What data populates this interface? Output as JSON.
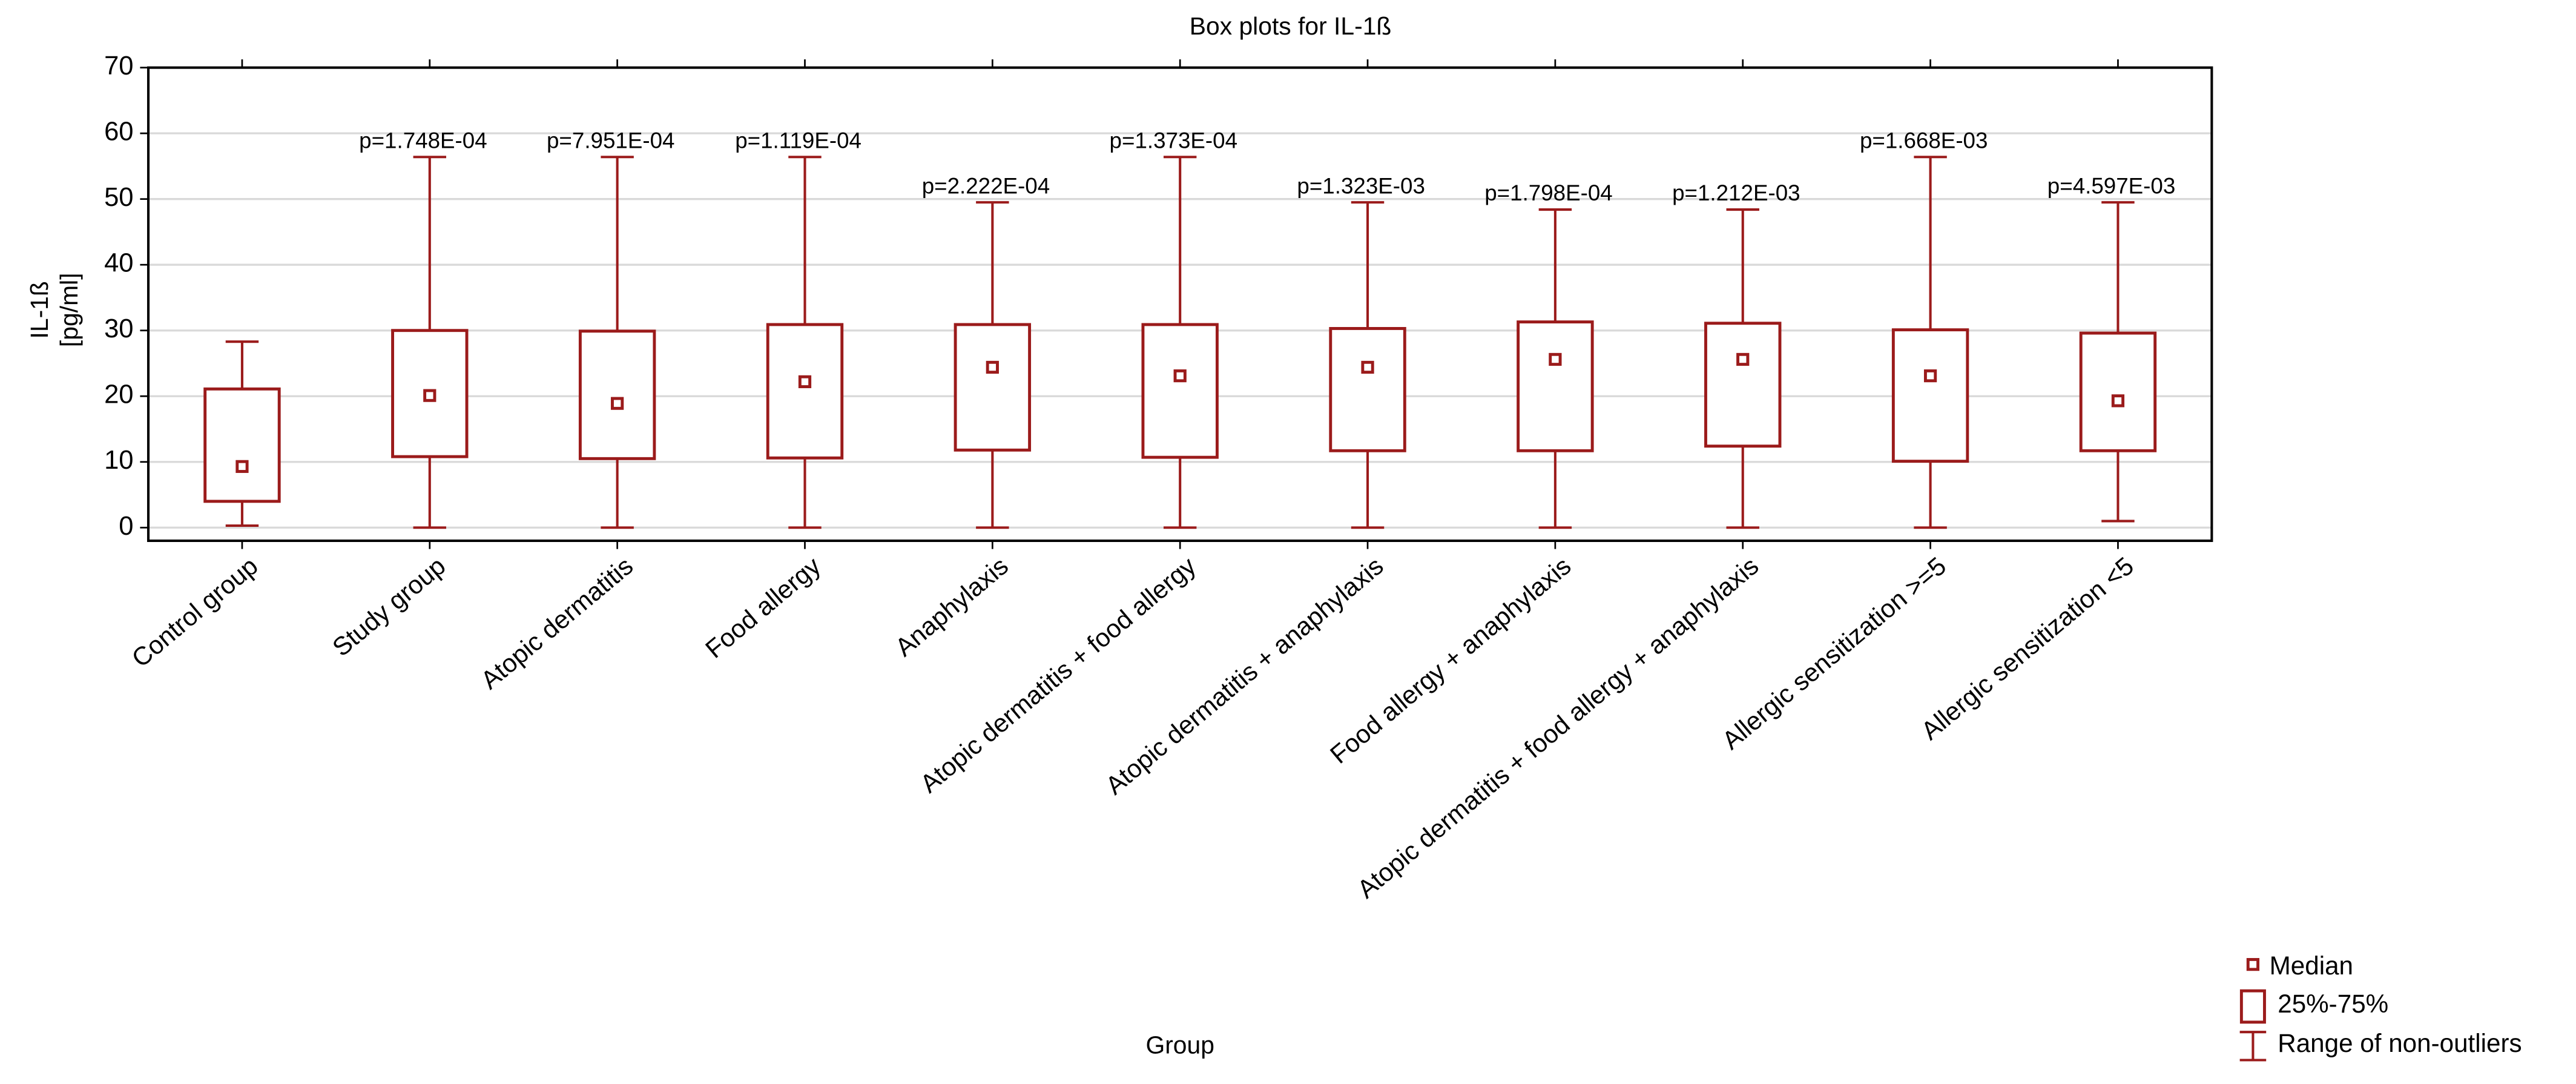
{
  "chart_data": {
    "type": "box",
    "title": "Box plots for IL-1ß",
    "x_label": "Group",
    "y_label": [
      "IL-1ß",
      "[pg/ml]"
    ],
    "categories": [
      "Control group",
      "Study group",
      "Atopic dermatitis",
      "Food allergy",
      "Anaphylaxis",
      "Atopic dermatitis + food allergy",
      "Atopic dermatitis + anaphylaxis",
      "Food allergy + anaphylaxis",
      "Atopic dermatitis + food allergy + anaphylaxis",
      "Allergic sensitization >=5",
      "Allergic sensitization <5"
    ],
    "min": [
      0.3,
      0,
      0,
      0,
      0,
      0,
      0,
      0,
      0,
      0,
      1.0
    ],
    "q1": [
      4.0,
      10.8,
      10.5,
      10.6,
      11.8,
      10.7,
      11.7,
      11.7,
      12.4,
      10.1,
      11.7
    ],
    "median": [
      9.3,
      20.1,
      18.9,
      22.2,
      24.4,
      23.1,
      24.4,
      25.6,
      25.6,
      23.1,
      19.3
    ],
    "q3": [
      21.1,
      30.0,
      29.9,
      30.9,
      30.9,
      30.9,
      30.3,
      31.3,
      31.1,
      30.1,
      29.6
    ],
    "max": [
      28.3,
      56.4,
      56.4,
      56.4,
      49.5,
      56.4,
      49.5,
      48.4,
      48.4,
      56.4,
      49.5
    ],
    "p_values": [
      null,
      "p=1.748E-04",
      "p=7.951E-04",
      "p=1.119E-04",
      "p=2.222E-04",
      "p=1.373E-04",
      "p=1.323E-03",
      "p=1.798E-04",
      "p=1.212E-03",
      "p=1.668E-03",
      "p=4.597E-03"
    ],
    "color": "#9b1b1b",
    "ylim": [
      -2,
      70
    ],
    "yticks": [
      0,
      10,
      20,
      30,
      40,
      50,
      60,
      70
    ],
    "grid": true,
    "legend": [
      "Median",
      "25%-75%",
      "Range of non-outliers"
    ]
  }
}
